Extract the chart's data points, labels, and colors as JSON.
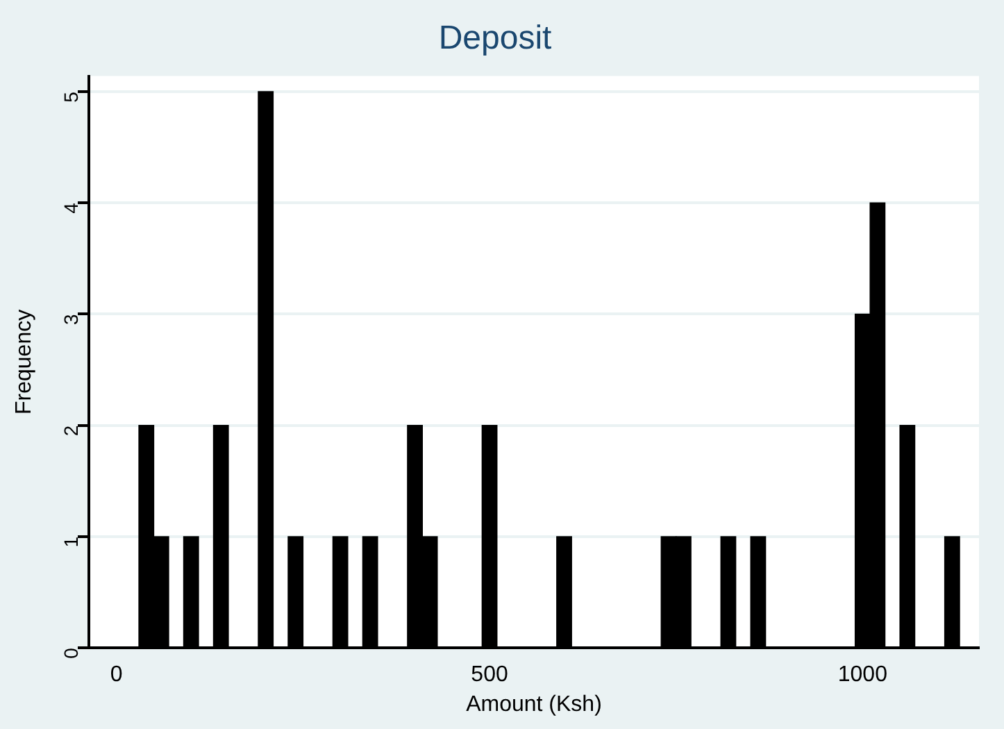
{
  "chart_data": {
    "type": "histogram",
    "title": "Deposit",
    "xlabel": "Amount (Ksh)",
    "ylabel": "Frequency",
    "bins": [
      30,
      50,
      70,
      90,
      110,
      130,
      150,
      170,
      190,
      210,
      230,
      250,
      270,
      290,
      310,
      330,
      350,
      370,
      390,
      410,
      430,
      450,
      470,
      490,
      510,
      530,
      550,
      570,
      590,
      610,
      630,
      650,
      670,
      690,
      710,
      730,
      750,
      770,
      790,
      810,
      830,
      850,
      870,
      890,
      910,
      930,
      950,
      970,
      990,
      1010,
      1030,
      1050,
      1070,
      1090,
      1110,
      1130
    ],
    "values": [
      2,
      1,
      0,
      1,
      0,
      2,
      0,
      0,
      5,
      0,
      1,
      0,
      0,
      1,
      0,
      1,
      0,
      0,
      2,
      1,
      0,
      0,
      0,
      2,
      0,
      0,
      0,
      0,
      1,
      0,
      0,
      0,
      0,
      0,
      0,
      1,
      1,
      0,
      0,
      1,
      0,
      1,
      0,
      0,
      0,
      0,
      0,
      0,
      3,
      4,
      0,
      2,
      0,
      0,
      1
    ],
    "color": "#000000",
    "xlim": [
      -37,
      1156
    ],
    "xticks": [
      0,
      500,
      1000
    ],
    "ylim": [
      0,
      5.14
    ],
    "yticks": [
      0,
      1,
      2,
      3,
      4,
      5
    ],
    "grid": "y"
  }
}
